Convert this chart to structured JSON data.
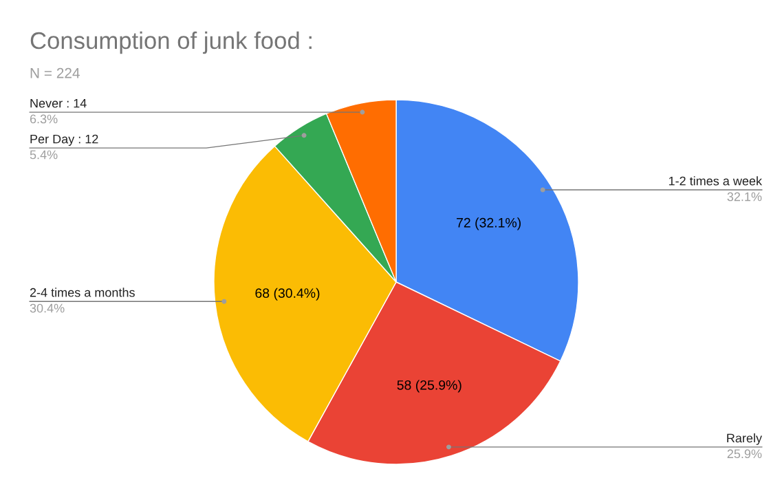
{
  "chart_data": {
    "type": "pie",
    "title": "Consumption of junk food :",
    "subtitle": "N = 224",
    "categories": [
      "1-2 times a week",
      "Rarely",
      "2-4 times a months",
      "Per Day : 12",
      "Never : 14"
    ],
    "values": [
      72,
      58,
      68,
      12,
      14
    ],
    "colors": [
      "#4285f4",
      "#ea4335",
      "#fbbc04",
      "#34a853",
      "#ff6d01"
    ],
    "value_labels": [
      "72 (32.1%)",
      "58 (25.9%)",
      "68 (30.4%)",
      null,
      null
    ],
    "annotations": [
      "32.1%",
      "25.9%",
      "30.4%",
      "5.4%",
      "6.3%"
    ],
    "legend": false
  }
}
